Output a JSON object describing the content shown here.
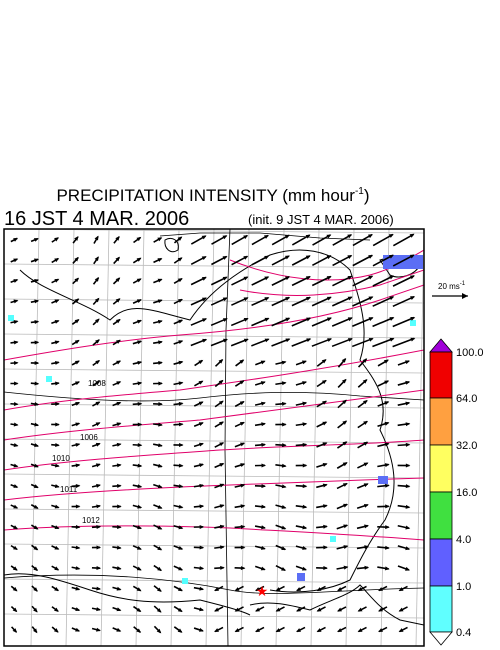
{
  "title": {
    "text": "PRECIPITATION INTENSITY (mm hour",
    "superscript": "-1",
    "close": ")"
  },
  "valid_time": "16 JST 4 MAR. 2006",
  "init_time": "(init. 9 JST 4 MAR. 2006)",
  "wind_scale": {
    "text": "20 ms",
    "superscript": "-1"
  },
  "colorbar": {
    "labels": [
      "100.0",
      "64.0",
      "32.0",
      "16.0",
      "4.0",
      "1.0",
      "0.4"
    ]
  },
  "isobar_labels": [
    "1008",
    "1006",
    "1010",
    "1011",
    "1012"
  ]
}
